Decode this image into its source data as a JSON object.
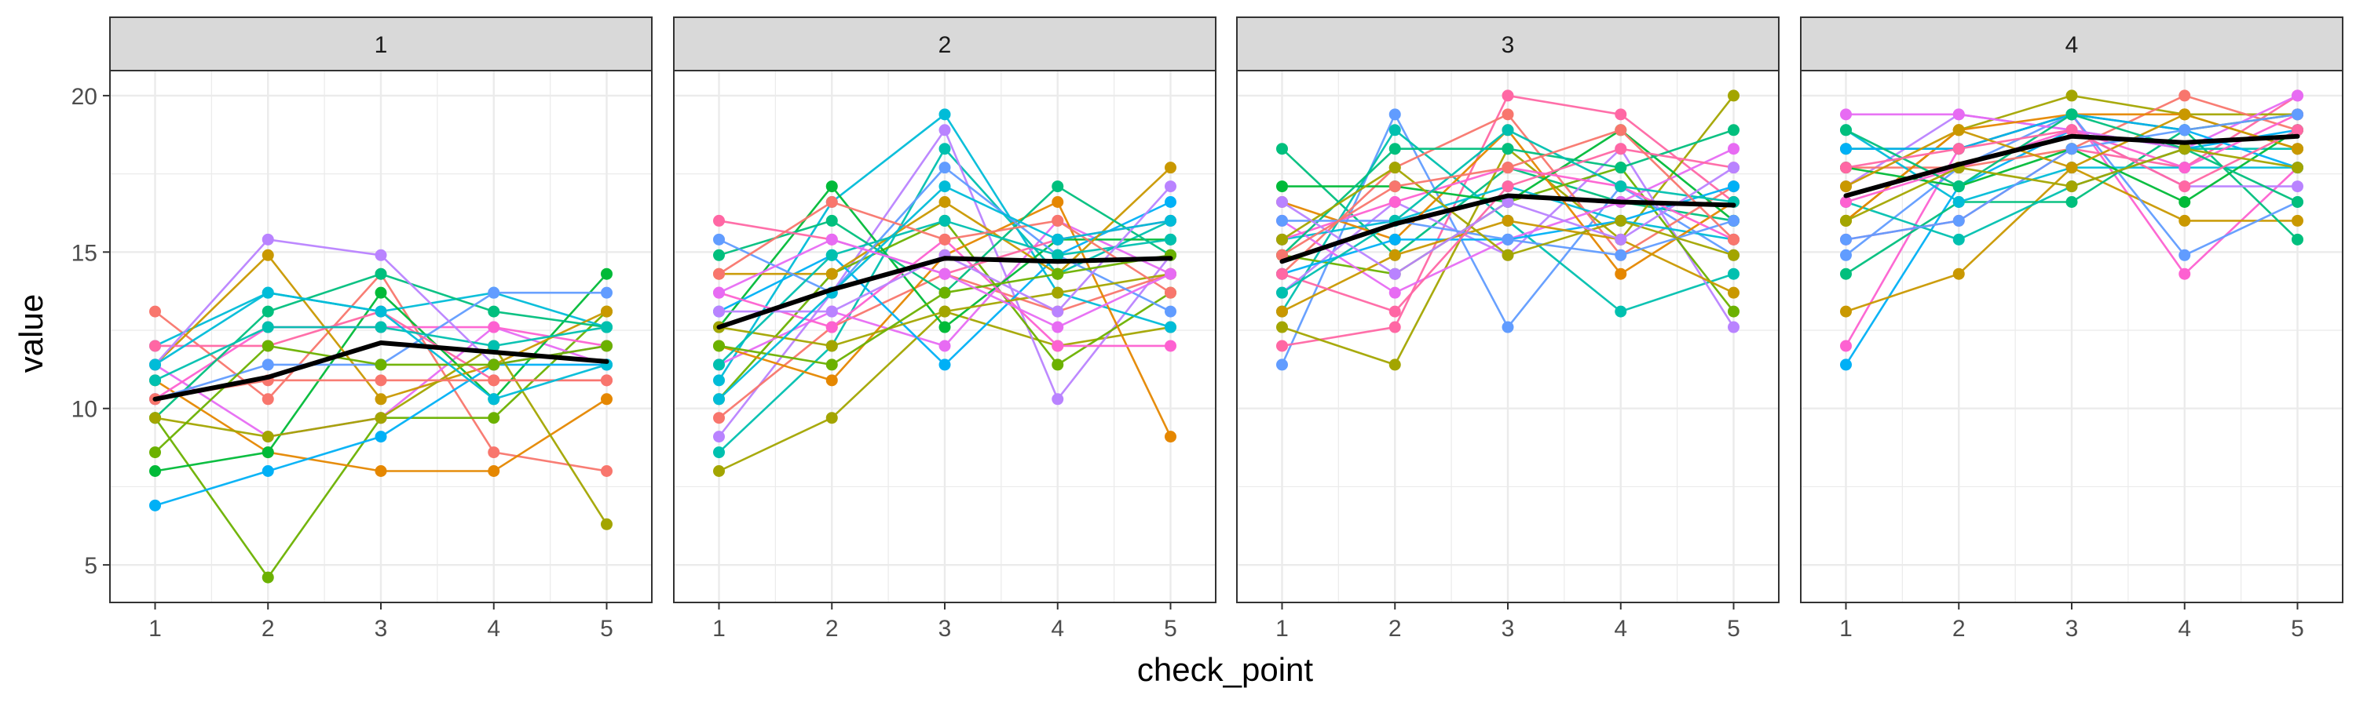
{
  "chart_data": {
    "type": "line",
    "facet_variable": "panel",
    "xlabel": "check_point",
    "ylabel": "value",
    "x": [
      1,
      2,
      3,
      4,
      5
    ],
    "xlim": [
      0.6,
      5.4
    ],
    "ylim": [
      3.8,
      20.8
    ],
    "y_ticks": [
      5,
      10,
      15,
      20
    ],
    "grid": true,
    "legend": "none",
    "colors": {
      "palette": [
        "#F8766D",
        "#E58700",
        "#C99800",
        "#A3A500",
        "#6BB100",
        "#00BA38",
        "#00BF7D",
        "#00C0AF",
        "#00BCD8",
        "#00B0F6",
        "#619CFF",
        "#B983FF",
        "#E76BF3",
        "#FD61D1",
        "#FF67A4"
      ],
      "mean_line": "#000000",
      "strip_fill": "#d9d9d9",
      "grid": "#ebebeb",
      "border": "#333333"
    },
    "panels": [
      {
        "label": "1",
        "mean": [
          10.3,
          11.0,
          12.1,
          11.8,
          11.5
        ],
        "series": [
          {
            "values": [
              13.1,
              10.3,
              14.3,
              8.6,
              8.0
            ]
          },
          {
            "values": [
              9.7,
              4.6,
              9.7,
              9.7,
              13.1
            ]
          },
          {
            "values": [
              12.0,
              13.7,
              13.1,
              13.7,
              12.6
            ]
          },
          {
            "values": [
              11.4,
              9.1,
              9.7,
              12.6,
              11.4
            ]
          },
          {
            "values": [
              10.9,
              8.6,
              8.0,
              8.0,
              10.3
            ]
          },
          {
            "values": [
              8.0,
              8.6,
              13.7,
              10.3,
              14.3
            ]
          },
          {
            "values": [
              6.9,
              8.0,
              9.1,
              11.4,
              11.4
            ]
          },
          {
            "values": [
              10.3,
              12.6,
              12.6,
              12.6,
              12.0
            ]
          },
          {
            "values": [
              11.4,
              14.9,
              10.3,
              11.4,
              13.1
            ]
          },
          {
            "values": [
              9.7,
              13.1,
              14.3,
              13.1,
              12.6
            ]
          },
          {
            "values": [
              10.3,
              11.4,
              11.4,
              13.7,
              13.7
            ]
          },
          {
            "values": [
              12.0,
              12.0,
              13.1,
              10.9,
              10.9
            ]
          },
          {
            "values": [
              9.7,
              9.1,
              9.7,
              12.0,
              6.3
            ]
          },
          {
            "values": [
              10.9,
              12.6,
              12.6,
              12.0,
              12.6
            ]
          },
          {
            "values": [
              11.4,
              15.4,
              14.9,
              11.4,
              12.0
            ]
          },
          {
            "values": [
              10.3,
              10.9,
              10.9,
              10.9,
              10.9
            ]
          },
          {
            "values": [
              8.6,
              12.0,
              11.4,
              11.4,
              12.0
            ]
          },
          {
            "values": [
              11.4,
              13.7,
              13.1,
              10.3,
              11.4
            ]
          }
        ]
      },
      {
        "label": "2",
        "mean": [
          12.6,
          13.8,
          14.8,
          14.7,
          14.8
        ],
        "series": [
          {
            "values": [
              8.0,
              9.7,
              13.1,
              12.0,
              12.6
            ]
          },
          {
            "values": [
              8.6,
              12.0,
              18.3,
              14.3,
              16.0
            ]
          },
          {
            "values": [
              9.1,
              13.7,
              18.9,
              10.3,
              14.9
            ]
          },
          {
            "values": [
              9.7,
              12.6,
              14.3,
              13.1,
              14.3
            ]
          },
          {
            "values": [
              10.3,
              14.3,
              16.0,
              11.4,
              13.7
            ]
          },
          {
            "values": [
              10.9,
              16.6,
              19.4,
              13.7,
              12.6
            ]
          },
          {
            "values": [
              11.4,
              13.1,
              12.0,
              16.0,
              14.3
            ]
          },
          {
            "values": [
              12.0,
              10.9,
              14.9,
              16.6,
              9.1
            ]
          },
          {
            "values": [
              12.6,
              17.1,
              12.6,
              15.4,
              15.4
            ]
          },
          {
            "values": [
              13.1,
              14.9,
              11.4,
              14.9,
              16.6
            ]
          },
          {
            "values": [
              13.7,
              12.6,
              15.4,
              12.0,
              12.0
            ]
          },
          {
            "values": [
              14.3,
              14.3,
              16.6,
              14.3,
              17.7
            ]
          },
          {
            "values": [
              14.9,
              16.0,
              13.7,
              17.1,
              14.9
            ]
          },
          {
            "values": [
              15.4,
              13.7,
              17.7,
              14.9,
              13.1
            ]
          },
          {
            "values": [
              16.0,
              15.4,
              14.3,
              15.4,
              16.0
            ]
          },
          {
            "values": [
              12.6,
              12.0,
              13.1,
              13.7,
              14.3
            ]
          },
          {
            "values": [
              11.4,
              14.9,
              16.0,
              14.9,
              15.4
            ]
          },
          {
            "values": [
              13.1,
              13.1,
              14.9,
              13.1,
              17.1
            ]
          },
          {
            "values": [
              14.3,
              16.6,
              15.4,
              16.0,
              13.7
            ]
          },
          {
            "values": [
              12.0,
              11.4,
              13.7,
              14.3,
              14.9
            ]
          },
          {
            "values": [
              10.3,
              13.7,
              17.1,
              15.4,
              16.0
            ]
          },
          {
            "values": [
              13.7,
              15.4,
              14.3,
              12.6,
              14.3
            ]
          }
        ]
      },
      {
        "label": "3",
        "mean": [
          14.7,
          15.9,
          16.8,
          16.6,
          16.5
        ],
        "series": [
          {
            "values": [
              18.3,
              14.9,
              17.7,
              16.6,
              16.0
            ]
          },
          {
            "values": [
              11.4,
              19.4,
              12.6,
              17.1,
              14.9
            ]
          },
          {
            "values": [
              12.0,
              12.6,
              20.0,
              19.4,
              16.6
            ]
          },
          {
            "values": [
              12.6,
              11.4,
              18.3,
              15.4,
              20.0
            ]
          },
          {
            "values": [
              13.1,
              18.9,
              16.0,
              13.1,
              14.3
            ]
          },
          {
            "values": [
              13.7,
              16.6,
              14.9,
              18.3,
              12.6
            ]
          },
          {
            "values": [
              14.3,
              17.7,
              19.4,
              14.9,
              17.1
            ]
          },
          {
            "values": [
              14.9,
              14.3,
              16.6,
              17.7,
              13.1
            ]
          },
          {
            "values": [
              15.4,
              16.0,
              17.1,
              16.0,
              15.4
            ]
          },
          {
            "values": [
              16.0,
              13.7,
              15.4,
              16.6,
              18.3
            ]
          },
          {
            "values": [
              16.6,
              15.4,
              18.9,
              14.3,
              16.6
            ]
          },
          {
            "values": [
              17.1,
              17.1,
              16.6,
              18.9,
              16.0
            ]
          },
          {
            "values": [
              14.3,
              15.4,
              15.4,
              16.0,
              17.1
            ]
          },
          {
            "values": [
              15.4,
              16.6,
              17.7,
              17.1,
              15.4
            ]
          },
          {
            "values": [
              13.1,
              14.9,
              16.0,
              15.4,
              13.7
            ]
          },
          {
            "values": [
              14.9,
              18.3,
              18.3,
              17.7,
              18.9
            ]
          },
          {
            "values": [
              16.0,
              16.0,
              15.4,
              14.9,
              16.0
            ]
          },
          {
            "values": [
              14.3,
              13.1,
              17.1,
              18.3,
              17.7
            ]
          },
          {
            "values": [
              15.4,
              17.7,
              14.9,
              16.0,
              14.9
            ]
          },
          {
            "values": [
              13.7,
              16.0,
              18.9,
              17.1,
              16.6
            ]
          },
          {
            "values": [
              16.6,
              14.3,
              16.6,
              15.4,
              17.7
            ]
          },
          {
            "values": [
              14.9,
              17.1,
              17.7,
              18.9,
              15.4
            ]
          }
        ]
      },
      {
        "label": "4",
        "mean": [
          16.8,
          17.8,
          18.7,
          18.5,
          18.7
        ],
        "series": [
          {
            "values": [
              11.4,
              17.1,
              18.9,
              18.3,
              18.9
            ]
          },
          {
            "values": [
              12.0,
              18.3,
              19.4,
              14.3,
              17.7
            ]
          },
          {
            "values": [
              13.1,
              14.3,
              17.7,
              16.0,
              16.0
            ]
          },
          {
            "values": [
              14.3,
              16.6,
              16.6,
              18.9,
              15.4
            ]
          },
          {
            "values": [
              14.9,
              17.7,
              19.4,
              14.9,
              16.6
            ]
          },
          {
            "values": [
              15.4,
              16.0,
              18.3,
              17.7,
              20.0
            ]
          },
          {
            "values": [
              16.0,
              18.9,
              20.0,
              19.4,
              19.4
            ]
          },
          {
            "values": [
              16.6,
              15.4,
              17.1,
              18.3,
              18.3
            ]
          },
          {
            "values": [
              17.1,
              19.4,
              18.9,
              17.1,
              17.1
            ]
          },
          {
            "values": [
              17.7,
              17.7,
              18.3,
              20.0,
              18.9
            ]
          },
          {
            "values": [
              18.3,
              18.3,
              19.4,
              18.9,
              19.4
            ]
          },
          {
            "values": [
              18.9,
              16.6,
              17.7,
              17.7,
              17.7
            ]
          },
          {
            "values": [
              19.4,
              19.4,
              18.9,
              18.3,
              20.0
            ]
          },
          {
            "values": [
              16.0,
              18.9,
              19.4,
              19.4,
              18.3
            ]
          },
          {
            "values": [
              17.7,
              17.1,
              18.3,
              16.6,
              18.9
            ]
          },
          {
            "values": [
              18.3,
              18.3,
              19.4,
              18.9,
              17.7
            ]
          },
          {
            "values": [
              16.6,
              17.7,
              18.9,
              17.7,
              19.4
            ]
          },
          {
            "values": [
              17.1,
              18.9,
              17.7,
              19.4,
              18.3
            ]
          },
          {
            "values": [
              18.9,
              17.1,
              19.4,
              18.3,
              16.6
            ]
          },
          {
            "values": [
              15.4,
              16.0,
              18.3,
              18.9,
              19.4
            ]
          },
          {
            "values": [
              17.7,
              18.3,
              18.9,
              17.1,
              18.9
            ]
          },
          {
            "values": [
              16.0,
              17.7,
              17.1,
              18.3,
              17.7
            ]
          }
        ]
      }
    ]
  }
}
